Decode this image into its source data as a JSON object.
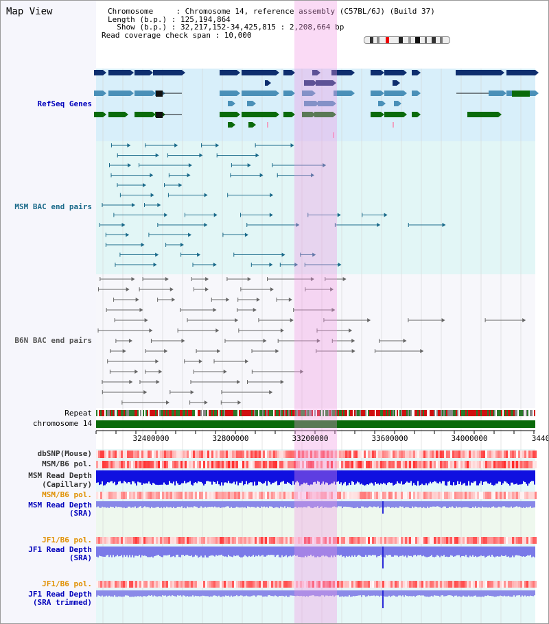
{
  "panel": {
    "title": "Map View"
  },
  "info": {
    "chromosome": "Chromosome     : Chromosome 14, reference assembly (C57BL/6J) (Build 37)",
    "length": "Length (b.p.) : 125,194,864",
    "show": "  Show (b.p.) : 32,217,152-34,425,815 : 2,208,664 bp",
    "read_span": "Read coverage check span : 10,000"
  },
  "tracks": {
    "refseq": "RefSeq Genes",
    "msm_bac": "MSM BAC end pairs",
    "b6n_bac": "B6N BAC end pairs",
    "repeat": "Repeat",
    "chromosome": "chromosome 14",
    "dbsnp": "dbSNP(Mouse)",
    "msm_b6_pol_1": "MSM/B6 pol.",
    "msm_read_depth_cap_1": "MSM Read Depth",
    "msm_read_depth_cap_2": "(Capillary)",
    "msm_b6_pol_2": "MSM/B6 pol.",
    "msm_read_depth_sra_1": "MSM Read Depth",
    "msm_read_depth_sra_2": "(SRA)",
    "jf1_b6_pol_1": "JF1/B6 pol.",
    "jf1_read_depth_sra_1": "JF1 Read Depth",
    "jf1_read_depth_sra_2": "(SRA)",
    "jf1_b6_pol_2": "JF1/B6 pol.",
    "jf1_read_depth_trim_1": "JF1 Read Depth",
    "jf1_read_depth_trim_2": "(SRA trimmed)"
  },
  "axis": {
    "ticks": [
      "32400000",
      "32800000",
      "33200000",
      "33600000",
      "34000000",
      "3440"
    ]
  },
  "colors": {
    "refseq_dark": "#0e2e6e",
    "refseq_mid": "#4a90b8",
    "refseq_green": "#0a6a0a",
    "bac_teal": "#1a6a8a",
    "bac_gray": "#666666",
    "highlight": "#f5c6ee"
  }
}
